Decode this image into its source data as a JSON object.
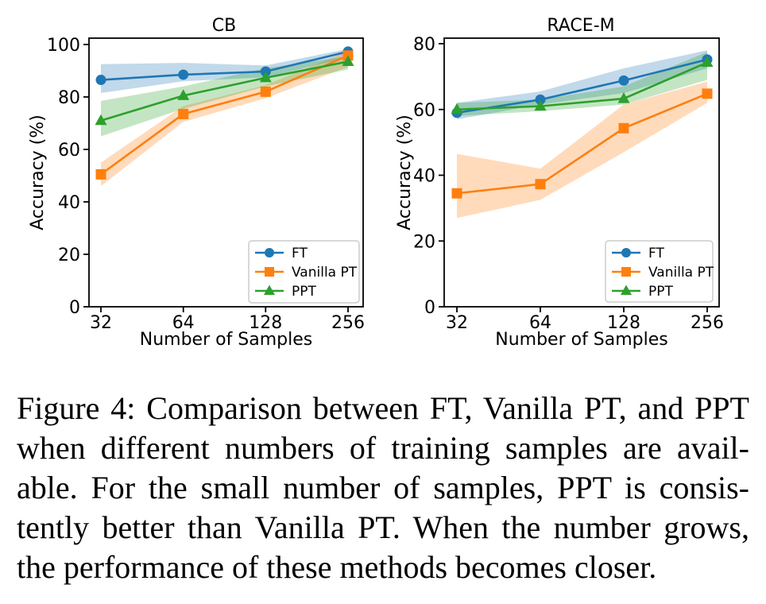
{
  "caption": {
    "lines": [
      "Figure 4: Comparison between FT, Vanilla PT, and PPT",
      "when different numbers of training samples are avail-",
      "able. For the small number of samples, PPT is consis-",
      "tently better than Vanilla PT. When the number grows,",
      "the performance of these methods becomes closer."
    ]
  },
  "chart_data": [
    {
      "type": "line",
      "title": "CB",
      "xlabel": "Number of Samples",
      "ylabel": "Accuracy (%)",
      "x": [
        32,
        64,
        128,
        256
      ],
      "x_tick_labels": [
        "32",
        "64",
        "128",
        "256"
      ],
      "x_scale": "log2",
      "ylim": [
        0,
        100
      ],
      "yticks": [
        0,
        20,
        40,
        60,
        80,
        100
      ],
      "grid": false,
      "legend_position": "lower right",
      "series": [
        {
          "name": "FT",
          "color": "#1f77b4",
          "marker": "circle",
          "values": [
            86.5,
            88.5,
            89.7,
            97.3
          ],
          "band_low": [
            81.5,
            86.0,
            87.5,
            95.0
          ],
          "band_high": [
            92.5,
            93.0,
            92.0,
            98.3
          ]
        },
        {
          "name": "Vanilla PT",
          "color": "#ff7f0e",
          "marker": "square",
          "values": [
            50.5,
            73.5,
            82.0,
            95.8
          ],
          "band_low": [
            46.0,
            70.5,
            79.5,
            91.5
          ],
          "band_high": [
            55.0,
            76.5,
            84.5,
            97.5
          ]
        },
        {
          "name": "PPT",
          "color": "#2ca02c",
          "marker": "triangle",
          "values": [
            71.0,
            80.5,
            87.3,
            93.5
          ],
          "band_low": [
            65.0,
            75.5,
            84.0,
            90.5
          ],
          "band_high": [
            78.5,
            84.0,
            91.0,
            95.5
          ]
        }
      ]
    },
    {
      "type": "line",
      "title": "RACE-M",
      "xlabel": "Number of Samples",
      "ylabel": "Accuracy (%)",
      "x": [
        32,
        64,
        128,
        256
      ],
      "x_tick_labels": [
        "32",
        "64",
        "128",
        "256"
      ],
      "x_scale": "log2",
      "ylim": [
        0,
        80
      ],
      "yticks": [
        0,
        20,
        40,
        60,
        80
      ],
      "grid": false,
      "legend_position": "lower right",
      "series": [
        {
          "name": "FT",
          "color": "#1f77b4",
          "marker": "circle",
          "values": [
            59.0,
            63.0,
            68.8,
            75.2
          ],
          "band_low": [
            57.0,
            61.5,
            65.0,
            72.5
          ],
          "band_high": [
            62.0,
            65.5,
            72.5,
            78.0
          ]
        },
        {
          "name": "Vanilla PT",
          "color": "#ff7f0e",
          "marker": "square",
          "values": [
            34.5,
            37.3,
            54.3,
            64.8
          ],
          "band_low": [
            27.0,
            32.5,
            47.0,
            62.0
          ],
          "band_high": [
            46.5,
            42.0,
            61.5,
            68.5
          ]
        },
        {
          "name": "PPT",
          "color": "#2ca02c",
          "marker": "triangle",
          "values": [
            60.0,
            61.0,
            63.3,
            74.3
          ],
          "band_low": [
            58.0,
            59.5,
            61.5,
            69.0
          ],
          "band_high": [
            62.0,
            63.0,
            67.0,
            77.5
          ]
        }
      ]
    }
  ]
}
